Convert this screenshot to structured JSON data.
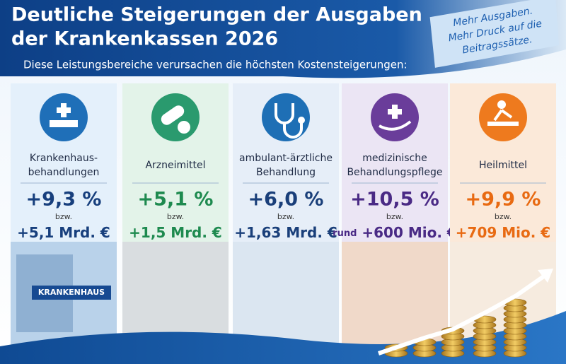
{
  "header": {
    "title_lines": [
      "Deutliche Steigerungen der Ausgaben",
      "der Krankenkassen 2026"
    ],
    "subtitle": "Diese Leistungsbereiche verursachen die höchsten Kostensteigerungen:"
  },
  "note": {
    "lines": [
      "Mehr Ausgaben.",
      "Mehr Druck auf die",
      "Beitragssätze."
    ]
  },
  "cards": [
    {
      "label_lines": [
        "Krankenhaus-",
        "behandlungen"
      ],
      "percent": "+9,3 %",
      "connector": "bzw.",
      "amount": "+5,1 Mrd. €",
      "image_text": "KRANKENHAUS"
    },
    {
      "label_lines": [
        "Arzneimittel"
      ],
      "percent": "+5,1 %",
      "connector": "bzw.",
      "amount": "+1,5 Mrd. €"
    },
    {
      "label_lines": [
        "ambulant-ärztliche",
        "Behandlung"
      ],
      "percent": "+6,0 %",
      "connector": "bzw.",
      "amount": "+1,63 Mrd. €"
    },
    {
      "label_lines": [
        "medizinische",
        "Behandlungspflege"
      ],
      "percent": "+10,5 %",
      "connector": "bzw.",
      "amount_prefix": "rund",
      "amount": "+600 Mio. €"
    },
    {
      "label_lines": [
        "Heilmittel"
      ],
      "percent": "+9,9 %",
      "connector": "bzw.",
      "amount": "+709 Mio. €"
    }
  ]
}
